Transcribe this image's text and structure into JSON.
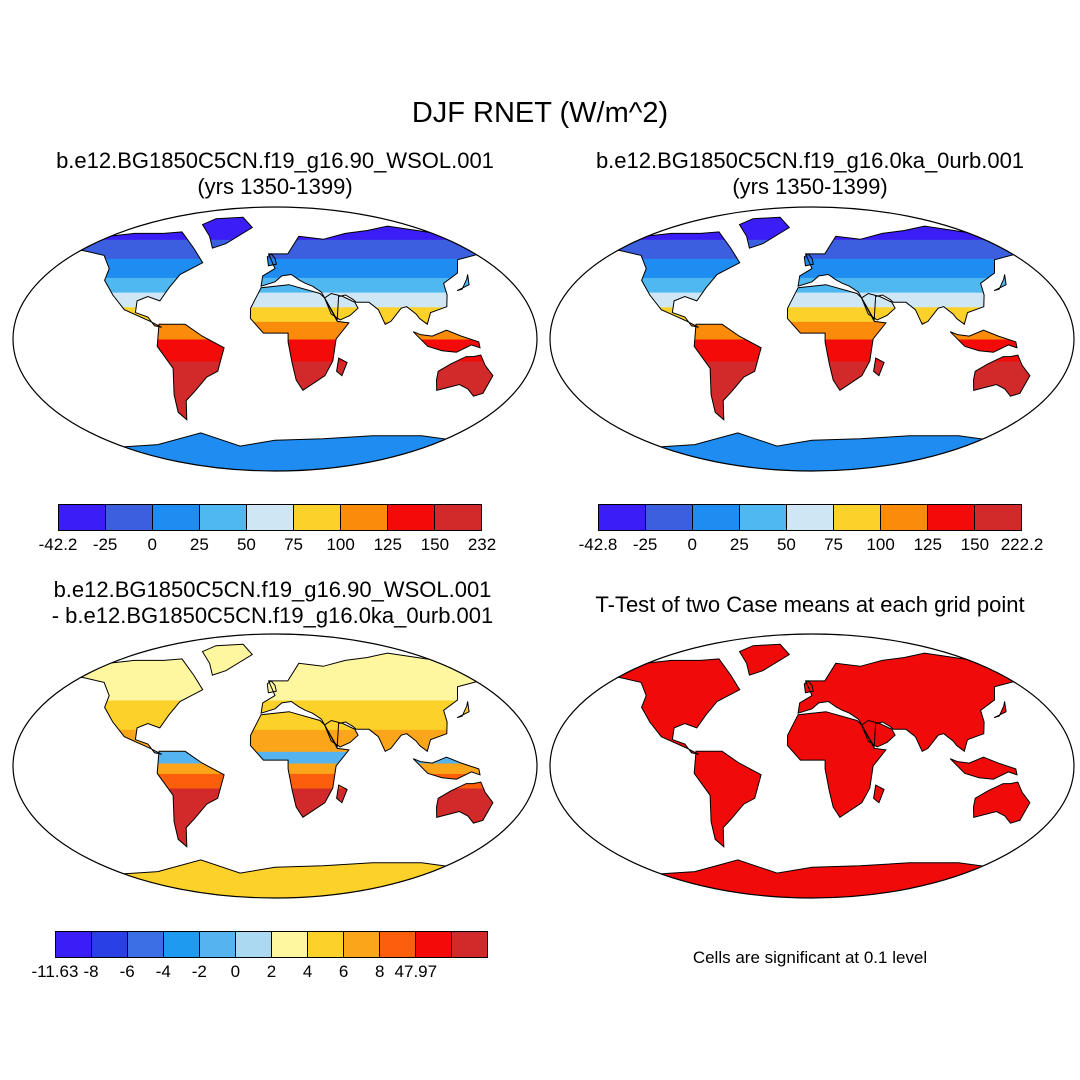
{
  "figure": {
    "title": "DJF RNET (W/m^2)"
  },
  "panels": {
    "p1": {
      "title_line1": "b.e12.BG1850C5CN.f19_g16.90_WSOL.001",
      "title_line2": "(yrs 1350-1399)",
      "colorbar": {
        "labels": [
          "-42.2",
          "-25",
          "0",
          "25",
          "50",
          "75",
          "100",
          "125",
          "150",
          "232"
        ],
        "colors": [
          "#3b1ef5",
          "#3c5fe0",
          "#1e8cf0",
          "#4fb8f0",
          "#cfe6f5",
          "#fcd22a",
          "#fb8c0b",
          "#f50a0a",
          "#d22a2a"
        ]
      }
    },
    "p2": {
      "title_line1": "b.e12.BG1850C5CN.f19_g16.0ka_0urb.001",
      "title_line2": "(yrs 1350-1399)",
      "colorbar": {
        "labels": [
          "-42.8",
          "-25",
          "0",
          "25",
          "50",
          "75",
          "100",
          "125",
          "150",
          "222.2"
        ],
        "colors": [
          "#3b1ef5",
          "#3c5fe0",
          "#1e8cf0",
          "#4fb8f0",
          "#cfe6f5",
          "#fcd22a",
          "#fb8c0b",
          "#f50a0a",
          "#d22a2a"
        ]
      }
    },
    "p3": {
      "title_line1": "b.e12.BG1850C5CN.f19_g16.90_WSOL.001",
      "title_line2": "- b.e12.BG1850C5CN.f19_g16.0ka_0urb.001",
      "colorbar": {
        "labels": [
          "-11.63",
          "-8",
          "-6",
          "-4",
          "-2",
          "0",
          "2",
          "4",
          "6",
          "8",
          "47.97"
        ],
        "colors": [
          "#3b1ef5",
          "#2840e6",
          "#3c6ee6",
          "#1e9bf0",
          "#55b4f0",
          "#abd9f2",
          "#fff7a0",
          "#fcd22a",
          "#fba51a",
          "#fb5f0b",
          "#f50a0a",
          "#d22a2a"
        ]
      }
    },
    "p4": {
      "title": "T-Test of two Case means at each grid point",
      "note": "Cells are significant at 0.1 level",
      "fill_color": "#f00a0a"
    }
  }
}
